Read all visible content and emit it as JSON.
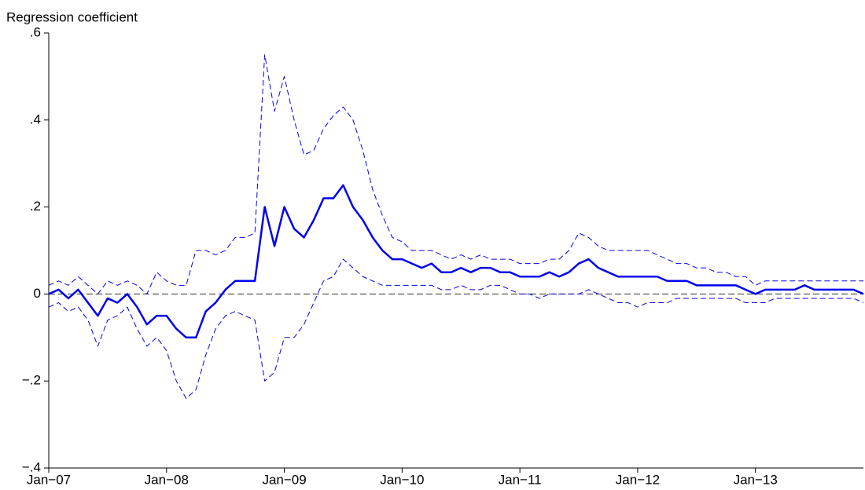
{
  "chart_data": {
    "type": "line",
    "y_label": "Regression coefficient",
    "x": [
      "2007-01",
      "2007-02",
      "2007-03",
      "2007-04",
      "2007-05",
      "2007-06",
      "2007-07",
      "2007-08",
      "2007-09",
      "2007-10",
      "2007-11",
      "2007-12",
      "2008-01",
      "2008-02",
      "2008-03",
      "2008-04",
      "2008-05",
      "2008-06",
      "2008-07",
      "2008-08",
      "2008-09",
      "2008-10",
      "2008-11",
      "2008-12",
      "2009-01",
      "2009-02",
      "2009-03",
      "2009-04",
      "2009-05",
      "2009-06",
      "2009-07",
      "2009-08",
      "2009-09",
      "2009-10",
      "2009-11",
      "2009-12",
      "2010-01",
      "2010-02",
      "2010-03",
      "2010-04",
      "2010-05",
      "2010-06",
      "2010-07",
      "2010-08",
      "2010-09",
      "2010-10",
      "2010-11",
      "2010-12",
      "2011-01",
      "2011-02",
      "2011-03",
      "2011-04",
      "2011-05",
      "2011-06",
      "2011-07",
      "2011-08",
      "2011-09",
      "2011-10",
      "2011-11",
      "2011-12",
      "2012-01",
      "2012-02",
      "2012-03",
      "2012-04",
      "2012-05",
      "2012-06",
      "2012-07",
      "2012-08",
      "2012-09",
      "2012-10",
      "2012-11",
      "2012-12",
      "2013-01",
      "2013-02",
      "2013-03",
      "2013-04",
      "2013-05",
      "2013-06",
      "2013-07",
      "2013-08",
      "2013-09",
      "2013-10",
      "2013-11",
      "2013-12"
    ],
    "series": [
      {
        "color": "#0000ee",
        "dashed": false,
        "width": 2.5,
        "values": [
          0,
          0.01,
          -0.01,
          0.01,
          -0.02,
          -0.05,
          -0.01,
          -0.02,
          0,
          -0.03,
          -0.07,
          -0.05,
          -0.05,
          -0.08,
          -0.1,
          -0.1,
          -0.04,
          -0.02,
          0.01,
          0.03,
          0.03,
          0.03,
          0.2,
          0.11,
          0.2,
          0.15,
          0.13,
          0.17,
          0.22,
          0.22,
          0.25,
          0.2,
          0.17,
          0.13,
          0.1,
          0.08,
          0.08,
          0.07,
          0.06,
          0.07,
          0.05,
          0.05,
          0.06,
          0.05,
          0.06,
          0.06,
          0.05,
          0.05,
          0.04,
          0.04,
          0.04,
          0.05,
          0.04,
          0.05,
          0.07,
          0.08,
          0.06,
          0.05,
          0.04,
          0.04,
          0.04,
          0.04,
          0.04,
          0.03,
          0.03,
          0.03,
          0.02,
          0.02,
          0.02,
          0.02,
          0.02,
          0.01,
          0,
          0.01,
          0.01,
          0.01,
          0.01,
          0.02,
          0.01,
          0.01,
          0.01,
          0.01,
          0.01,
          0
        ]
      },
      {
        "color": "#0000ee",
        "dashed": true,
        "width": 1,
        "values": [
          0.02,
          0.03,
          0.02,
          0.04,
          0.02,
          0,
          0.03,
          0.02,
          0.03,
          0.02,
          0,
          0.05,
          0.03,
          0.02,
          0.02,
          0.1,
          0.1,
          0.09,
          0.1,
          0.13,
          0.13,
          0.14,
          0.55,
          0.42,
          0.5,
          0.4,
          0.32,
          0.33,
          0.38,
          0.41,
          0.43,
          0.4,
          0.33,
          0.24,
          0.18,
          0.13,
          0.12,
          0.1,
          0.1,
          0.1,
          0.09,
          0.08,
          0.09,
          0.08,
          0.09,
          0.08,
          0.08,
          0.08,
          0.07,
          0.07,
          0.07,
          0.08,
          0.08,
          0.1,
          0.14,
          0.13,
          0.11,
          0.1,
          0.1,
          0.1,
          0.1,
          0.1,
          0.09,
          0.08,
          0.07,
          0.07,
          0.06,
          0.06,
          0.05,
          0.05,
          0.04,
          0.04,
          0.02,
          0.03,
          0.03,
          0.03,
          0.03,
          0.03,
          0.03,
          0.03,
          0.03,
          0.03,
          0.03,
          0.03
        ]
      },
      {
        "color": "#0000ee",
        "dashed": true,
        "width": 1,
        "values": [
          -0.03,
          -0.02,
          -0.04,
          -0.03,
          -0.06,
          -0.12,
          -0.06,
          -0.05,
          -0.03,
          -0.08,
          -0.12,
          -0.1,
          -0.13,
          -0.2,
          -0.24,
          -0.22,
          -0.14,
          -0.08,
          -0.05,
          -0.04,
          -0.05,
          -0.06,
          -0.2,
          -0.18,
          -0.1,
          -0.1,
          -0.07,
          -0.02,
          0.03,
          0.04,
          0.08,
          0.06,
          0.04,
          0.03,
          0.02,
          0.02,
          0.02,
          0.02,
          0.02,
          0.02,
          0.01,
          0.01,
          0.02,
          0.01,
          0.01,
          0.02,
          0.02,
          0.01,
          0,
          0,
          -0.01,
          0,
          0,
          0,
          0,
          0.01,
          0,
          -0.01,
          -0.02,
          -0.02,
          -0.03,
          -0.02,
          -0.02,
          -0.02,
          -0.01,
          -0.01,
          -0.01,
          -0.01,
          -0.01,
          -0.01,
          -0.01,
          -0.02,
          -0.02,
          -0.02,
          -0.01,
          -0.01,
          -0.01,
          -0.01,
          -0.01,
          -0.01,
          -0.01,
          -0.01,
          -0.01,
          -0.02
        ]
      }
    ],
    "reference_line": 0,
    "xlim": [
      "2007-01",
      "2013-12"
    ],
    "xticks": [
      {
        "value": "2007-01",
        "label": "Jan−07"
      },
      {
        "value": "2008-01",
        "label": "Jan−08"
      },
      {
        "value": "2009-01",
        "label": "Jan−09"
      },
      {
        "value": "2010-01",
        "label": "Jan−10"
      },
      {
        "value": "2011-01",
        "label": "Jan−11"
      },
      {
        "value": "2012-01",
        "label": "Jan−12"
      },
      {
        "value": "2013-01",
        "label": "Jan−13"
      }
    ],
    "ylim": [
      -0.4,
      0.6
    ],
    "yticks": [
      {
        "value": -0.4,
        "label": "−.4"
      },
      {
        "value": -0.2,
        "label": "−.2"
      },
      0,
      {
        "value": 0.2,
        "label": ".2"
      },
      {
        "value": 0.4,
        "label": ".4"
      },
      {
        "value": 0.6,
        "label": ".6"
      }
    ],
    "grid": false
  }
}
